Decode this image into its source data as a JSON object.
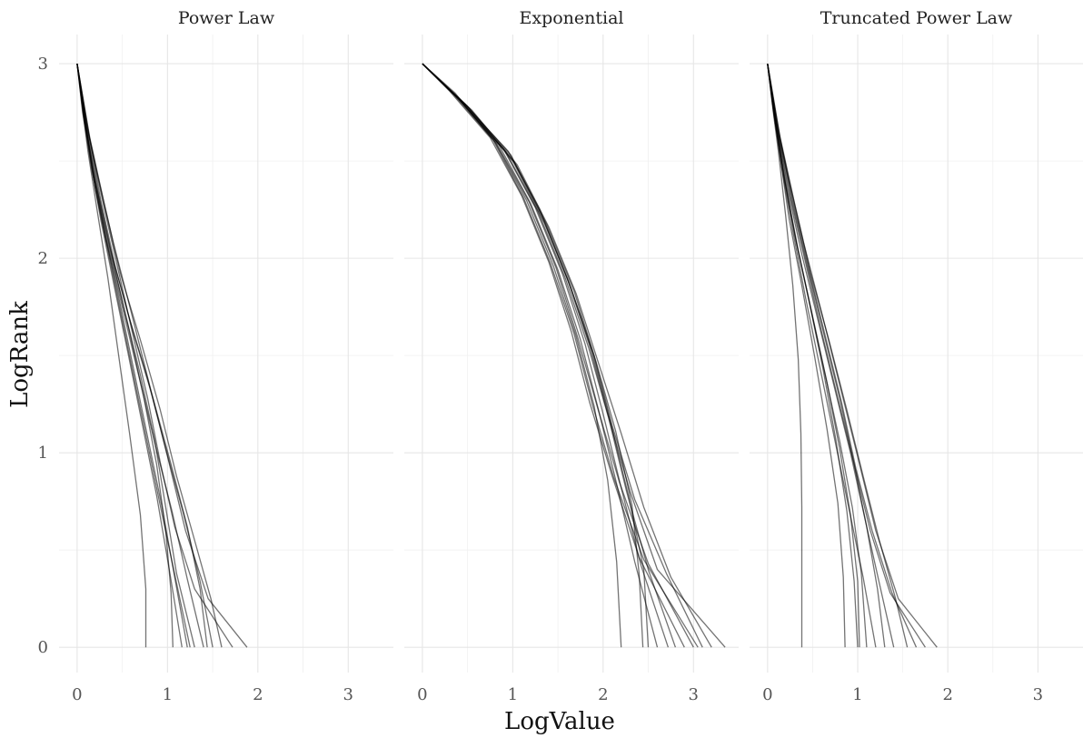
{
  "chart_data": {
    "type": "line",
    "xlabel": "LogValue",
    "ylabel": "LogRank",
    "xlim": [
      -0.2,
      3.5
    ],
    "ylim": [
      -0.13,
      3.15
    ],
    "x_major_ticks": [
      0,
      1,
      2,
      3
    ],
    "x_tick_labels": [
      "0",
      "1",
      "2",
      "3"
    ],
    "x_minor_ticks": [
      0.5,
      1.5,
      2.5
    ],
    "y_major_ticks": [
      0,
      1,
      2,
      3
    ],
    "y_tick_labels": [
      "0",
      "1",
      "2",
      "3"
    ],
    "y_minor_ticks": [
      0.5,
      1.5,
      2.5
    ],
    "grid": true,
    "line_color": "#000000",
    "facets": [
      {
        "title": "Power Law",
        "series": [
          {
            "x": [
              0.0,
              0.1,
              0.24,
              0.4,
              0.6,
              0.8,
              1.0,
              1.2,
              1.45,
              1.88
            ],
            "y": [
              3.0,
              2.7,
              2.4,
              2.08,
              1.72,
              1.35,
              0.98,
              0.6,
              0.25,
              0.0
            ]
          },
          {
            "x": [
              0.0,
              0.08,
              0.18,
              0.32,
              0.5,
              0.68,
              0.86,
              1.05,
              1.22,
              1.4
            ],
            "y": [
              3.0,
              2.72,
              2.45,
              2.1,
              1.75,
              1.4,
              1.05,
              0.7,
              0.35,
              0.0
            ]
          },
          {
            "x": [
              0.0,
              0.12,
              0.28,
              0.45,
              0.62,
              0.78,
              0.92,
              1.08,
              1.3,
              1.72
            ],
            "y": [
              3.0,
              2.65,
              2.3,
              1.95,
              1.6,
              1.28,
              0.95,
              0.62,
              0.3,
              0.0
            ]
          },
          {
            "x": [
              0.0,
              0.06,
              0.15,
              0.26,
              0.4,
              0.56,
              0.72,
              0.88,
              1.02,
              1.16
            ],
            "y": [
              3.0,
              2.75,
              2.5,
              2.2,
              1.88,
              1.52,
              1.15,
              0.78,
              0.4,
              0.0
            ]
          },
          {
            "x": [
              0.0,
              0.1,
              0.2,
              0.35,
              0.5,
              0.65,
              0.8,
              0.95,
              1.1,
              1.25
            ],
            "y": [
              3.0,
              2.68,
              2.36,
              2.02,
              1.68,
              1.34,
              1.0,
              0.66,
              0.33,
              0.0
            ]
          },
          {
            "x": [
              0.0,
              0.14,
              0.3,
              0.48,
              0.7,
              0.92,
              1.1,
              1.3,
              1.48,
              1.6
            ],
            "y": [
              3.0,
              2.62,
              2.28,
              1.92,
              1.58,
              1.22,
              0.88,
              0.55,
              0.25,
              0.0
            ]
          },
          {
            "x": [
              0.0,
              0.05,
              0.12,
              0.22,
              0.34,
              0.46,
              0.58,
              0.7,
              0.76,
              0.76
            ],
            "y": [
              3.0,
              2.8,
              2.55,
              2.25,
              1.9,
              1.5,
              1.1,
              0.68,
              0.3,
              0.0
            ]
          },
          {
            "x": [
              0.0,
              0.09,
              0.2,
              0.36,
              0.56,
              0.78,
              0.98,
              1.18,
              1.36,
              1.5
            ],
            "y": [
              3.0,
              2.7,
              2.4,
              2.06,
              1.72,
              1.38,
              1.02,
              0.68,
              0.34,
              0.0
            ]
          },
          {
            "x": [
              0.0,
              0.11,
              0.24,
              0.4,
              0.58,
              0.74,
              0.88,
              0.98,
              1.04,
              1.06
            ],
            "y": [
              3.0,
              2.66,
              2.32,
              1.98,
              1.62,
              1.28,
              0.94,
              0.6,
              0.28,
              0.0
            ]
          },
          {
            "x": [
              0.0,
              0.07,
              0.16,
              0.3,
              0.46,
              0.62,
              0.78,
              0.94,
              1.08,
              1.22
            ],
            "y": [
              3.0,
              2.74,
              2.46,
              2.14,
              1.8,
              1.44,
              1.08,
              0.72,
              0.36,
              0.0
            ]
          },
          {
            "x": [
              0.0,
              0.13,
              0.26,
              0.42,
              0.62,
              0.84,
              1.04,
              1.22,
              1.36,
              1.44
            ],
            "y": [
              3.0,
              2.64,
              2.3,
              1.96,
              1.62,
              1.28,
              0.94,
              0.62,
              0.3,
              0.0
            ]
          },
          {
            "x": [
              0.0,
              0.08,
              0.18,
              0.34,
              0.52,
              0.7,
              0.86,
              0.98,
              1.1,
              1.3
            ],
            "y": [
              3.0,
              2.72,
              2.42,
              2.08,
              1.74,
              1.4,
              1.06,
              0.72,
              0.38,
              0.0
            ]
          }
        ]
      },
      {
        "title": "Exponential",
        "series": [
          {
            "x": [
              0.0,
              0.45,
              0.95,
              1.3,
              1.6,
              1.85,
              2.05,
              2.3,
              2.6,
              3.35
            ],
            "y": [
              3.0,
              2.8,
              2.55,
              2.25,
              1.9,
              1.55,
              1.2,
              0.8,
              0.4,
              0.0
            ]
          },
          {
            "x": [
              0.0,
              0.4,
              0.85,
              1.2,
              1.5,
              1.75,
              1.95,
              2.15,
              2.35,
              2.6
            ],
            "y": [
              3.0,
              2.82,
              2.58,
              2.28,
              1.94,
              1.58,
              1.22,
              0.84,
              0.44,
              0.0
            ]
          },
          {
            "x": [
              0.0,
              0.5,
              1.0,
              1.35,
              1.65,
              1.9,
              2.1,
              2.35,
              2.7,
              3.1
            ],
            "y": [
              3.0,
              2.78,
              2.5,
              2.18,
              1.84,
              1.5,
              1.14,
              0.76,
              0.38,
              0.0
            ]
          },
          {
            "x": [
              0.0,
              0.35,
              0.8,
              1.15,
              1.45,
              1.7,
              1.9,
              2.05,
              2.15,
              2.2
            ],
            "y": [
              3.0,
              2.84,
              2.6,
              2.3,
              1.96,
              1.6,
              1.24,
              0.86,
              0.44,
              0.0
            ]
          },
          {
            "x": [
              0.0,
              0.55,
              1.05,
              1.4,
              1.7,
              1.95,
              2.2,
              2.45,
              2.75,
              3.2
            ],
            "y": [
              3.0,
              2.76,
              2.48,
              2.16,
              1.82,
              1.46,
              1.1,
              0.72,
              0.36,
              0.0
            ]
          },
          {
            "x": [
              0.0,
              0.42,
              0.9,
              1.25,
              1.55,
              1.8,
              2.0,
              2.2,
              2.42,
              2.72
            ],
            "y": [
              3.0,
              2.81,
              2.56,
              2.26,
              1.92,
              1.56,
              1.2,
              0.82,
              0.42,
              0.0
            ]
          },
          {
            "x": [
              0.0,
              0.3,
              0.75,
              1.1,
              1.4,
              1.65,
              1.85,
              2.1,
              2.4,
              2.9
            ],
            "y": [
              3.0,
              2.86,
              2.62,
              2.32,
              1.98,
              1.62,
              1.26,
              0.88,
              0.46,
              0.0
            ]
          },
          {
            "x": [
              0.0,
              0.48,
              0.98,
              1.32,
              1.62,
              1.88,
              2.08,
              2.28,
              2.45,
              2.5
            ],
            "y": [
              3.0,
              2.79,
              2.53,
              2.22,
              1.88,
              1.52,
              1.16,
              0.78,
              0.4,
              0.0
            ]
          },
          {
            "x": [
              0.0,
              0.38,
              0.82,
              1.18,
              1.48,
              1.72,
              1.94,
              2.18,
              2.5,
              3.0
            ],
            "y": [
              3.0,
              2.83,
              2.59,
              2.29,
              1.95,
              1.59,
              1.23,
              0.85,
              0.43,
              0.0
            ]
          },
          {
            "x": [
              0.0,
              0.52,
              1.02,
              1.38,
              1.68,
              1.92,
              2.14,
              2.32,
              2.4,
              2.44
            ],
            "y": [
              3.0,
              2.77,
              2.49,
              2.17,
              1.83,
              1.47,
              1.11,
              0.73,
              0.37,
              0.0
            ]
          },
          {
            "x": [
              0.0,
              0.44,
              0.92,
              1.28,
              1.58,
              1.84,
              2.06,
              2.26,
              2.5,
              2.8
            ],
            "y": [
              3.0,
              2.8,
              2.55,
              2.24,
              1.9,
              1.54,
              1.18,
              0.8,
              0.4,
              0.0
            ]
          },
          {
            "x": [
              0.0,
              0.36,
              0.78,
              1.12,
              1.42,
              1.68,
              1.88,
              2.12,
              2.45,
              3.05
            ],
            "y": [
              3.0,
              2.85,
              2.61,
              2.31,
              1.97,
              1.61,
              1.25,
              0.87,
              0.45,
              0.0
            ]
          }
        ]
      },
      {
        "title": "Truncated Power Law",
        "series": [
          {
            "x": [
              0.0,
              0.1,
              0.24,
              0.4,
              0.6,
              0.8,
              1.0,
              1.2,
              1.45,
              1.88
            ],
            "y": [
              3.0,
              2.7,
              2.4,
              2.08,
              1.72,
              1.35,
              0.98,
              0.6,
              0.25,
              0.0
            ]
          },
          {
            "x": [
              0.0,
              0.07,
              0.16,
              0.28,
              0.42,
              0.58,
              0.74,
              0.9,
              1.06,
              1.2
            ],
            "y": [
              3.0,
              2.74,
              2.46,
              2.14,
              1.8,
              1.44,
              1.08,
              0.72,
              0.36,
              0.0
            ]
          },
          {
            "x": [
              0.0,
              0.12,
              0.28,
              0.46,
              0.64,
              0.82,
              0.98,
              1.16,
              1.38,
              1.65
            ],
            "y": [
              3.0,
              2.64,
              2.3,
              1.94,
              1.6,
              1.26,
              0.92,
              0.6,
              0.28,
              0.0
            ]
          },
          {
            "x": [
              0.0,
              0.05,
              0.12,
              0.2,
              0.28,
              0.34,
              0.37,
              0.38,
              0.38,
              0.38
            ],
            "y": [
              3.0,
              2.8,
              2.55,
              2.22,
              1.86,
              1.48,
              1.1,
              0.72,
              0.36,
              0.0
            ]
          },
          {
            "x": [
              0.0,
              0.09,
              0.2,
              0.34,
              0.5,
              0.66,
              0.8,
              0.92,
              1.0,
              1.02
            ],
            "y": [
              3.0,
              2.7,
              2.38,
              2.04,
              1.7,
              1.36,
              1.02,
              0.68,
              0.34,
              0.0
            ]
          },
          {
            "x": [
              0.0,
              0.14,
              0.3,
              0.48,
              0.68,
              0.88,
              1.06,
              1.24,
              1.42,
              1.55
            ],
            "y": [
              3.0,
              2.62,
              2.28,
              1.92,
              1.58,
              1.22,
              0.88,
              0.55,
              0.25,
              0.0
            ]
          },
          {
            "x": [
              0.0,
              0.06,
              0.14,
              0.24,
              0.38,
              0.52,
              0.66,
              0.78,
              0.84,
              0.86
            ],
            "y": [
              3.0,
              2.78,
              2.52,
              2.2,
              1.86,
              1.5,
              1.12,
              0.74,
              0.36,
              0.0
            ]
          },
          {
            "x": [
              0.0,
              0.1,
              0.22,
              0.38,
              0.56,
              0.74,
              0.92,
              1.08,
              1.24,
              1.4
            ],
            "y": [
              3.0,
              2.68,
              2.36,
              2.02,
              1.68,
              1.34,
              1.0,
              0.66,
              0.33,
              0.0
            ]
          },
          {
            "x": [
              0.0,
              0.08,
              0.18,
              0.32,
              0.48,
              0.64,
              0.8,
              0.94,
              1.04,
              1.1
            ],
            "y": [
              3.0,
              2.72,
              2.42,
              2.08,
              1.74,
              1.4,
              1.06,
              0.72,
              0.38,
              0.0
            ]
          },
          {
            "x": [
              0.0,
              0.11,
              0.25,
              0.42,
              0.6,
              0.78,
              0.96,
              1.14,
              1.36,
              1.75
            ],
            "y": [
              3.0,
              2.66,
              2.32,
              1.98,
              1.62,
              1.28,
              0.94,
              0.6,
              0.28,
              0.0
            ]
          },
          {
            "x": [
              0.0,
              0.13,
              0.27,
              0.44,
              0.62,
              0.8,
              0.96,
              1.1,
              1.22,
              1.3
            ],
            "y": [
              3.0,
              2.64,
              2.3,
              1.96,
              1.62,
              1.28,
              0.94,
              0.62,
              0.3,
              0.0
            ]
          },
          {
            "x": [
              0.0,
              0.07,
              0.17,
              0.3,
              0.46,
              0.62,
              0.76,
              0.88,
              0.96,
              1.0
            ],
            "y": [
              3.0,
              2.74,
              2.46,
              2.12,
              1.78,
              1.42,
              1.06,
              0.7,
              0.34,
              0.0
            ]
          }
        ]
      }
    ]
  }
}
